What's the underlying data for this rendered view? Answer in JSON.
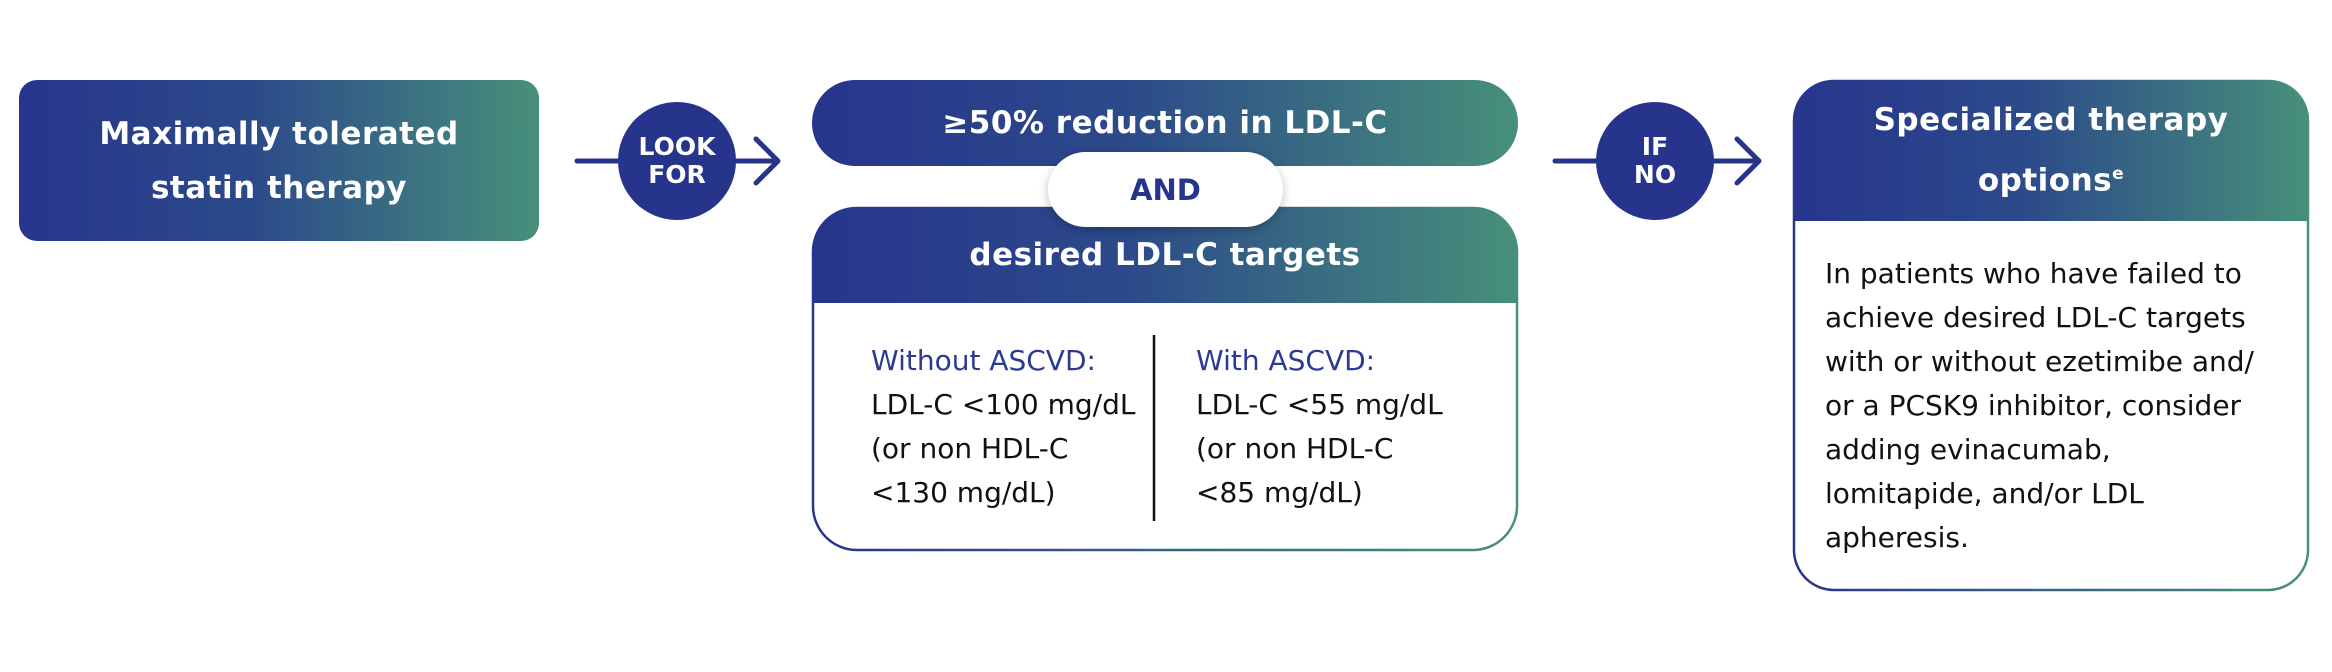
{
  "start": {
    "label": "Maximally tolerated statin therapy"
  },
  "connectors": [
    {
      "label": "LOOK FOR"
    },
    {
      "label": "IF NO"
    }
  ],
  "criteria": {
    "top": "≥50% reduction in LDL-C",
    "joiner": "AND",
    "header": "desired LDL-C targets",
    "columns": [
      {
        "heading": "Without ASCVD:",
        "lines": [
          "LDL-C <100 mg/dL",
          "(or non HDL-C",
          "<130 mg/dL)"
        ]
      },
      {
        "heading": "With ASCVD:",
        "lines": [
          "LDL-C <55 mg/dL",
          "(or non HDL-C",
          "<85 mg/dL)"
        ]
      }
    ]
  },
  "outcome": {
    "title": "Specialized therapy options",
    "title_superscript": "e",
    "lines": [
      "In patients who have failed to",
      "achieve desired LDL-C targets",
      "with or without ezetimibe and/",
      "or a PCSK9 inhibitor, consider",
      "adding evinacumab,",
      "lomitapide, and/or LDL",
      "apheresis."
    ]
  }
}
